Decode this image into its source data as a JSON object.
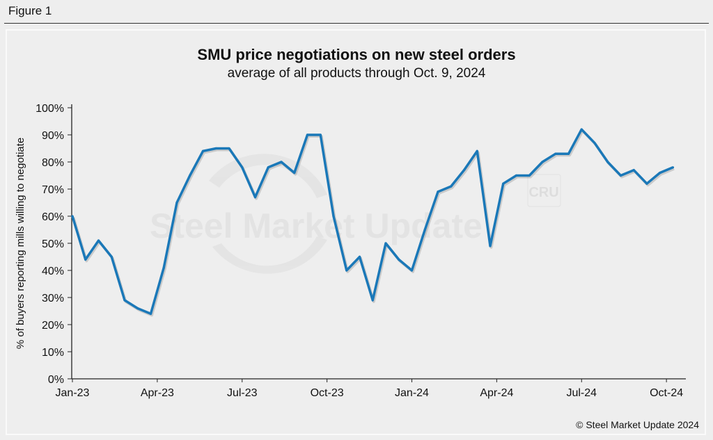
{
  "figure_label": "Figure 1",
  "footer": "© Steel Market Update 2024",
  "watermark": "Steel Market Update",
  "watermark_badge": "CRU",
  "chart_data": {
    "type": "line",
    "title": "SMU price negotiations on new steel orders",
    "subtitle": "average of all products through Oct. 9, 2024",
    "ylabel": "% of buyers reporting mills willing to negotiate",
    "xlabel": "",
    "ylim": [
      0,
      100
    ],
    "y_ticks": [
      "0%",
      "10%",
      "20%",
      "30%",
      "40%",
      "50%",
      "60%",
      "70%",
      "80%",
      "90%",
      "100%"
    ],
    "x_ticks": [
      "Jan-23",
      "Apr-23",
      "Jul-23",
      "Oct-23",
      "Jan-24",
      "Apr-24",
      "Jul-24",
      "Oct-24"
    ],
    "x_range": [
      "Jan-23",
      "Oct-24"
    ],
    "grid": false,
    "line_color": "#1a78b8",
    "series": [
      {
        "values": [
          60,
          44,
          51,
          45,
          29,
          26,
          24,
          41,
          65,
          75,
          84,
          85,
          85,
          78,
          67,
          78,
          80,
          76,
          90,
          90,
          60,
          40,
          45,
          29,
          50,
          44,
          40,
          55,
          69,
          71,
          77,
          84,
          49,
          72,
          75,
          75,
          80,
          83,
          83,
          92,
          87,
          80,
          75,
          77,
          72,
          76,
          78
        ]
      }
    ]
  }
}
